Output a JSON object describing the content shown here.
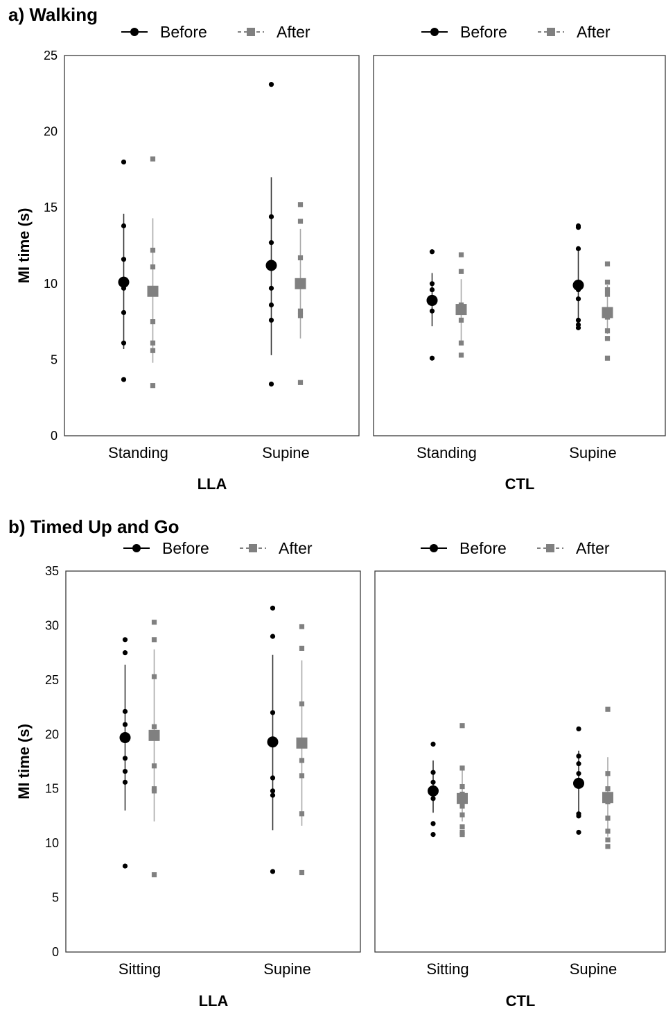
{
  "chart_data": [
    {
      "type": "scatter",
      "title": "a) Walking",
      "ylabel": "MI time (s)",
      "ylim": [
        0,
        25
      ],
      "yticks": [
        0,
        5,
        10,
        15,
        20,
        25
      ],
      "legend": [
        {
          "name": "Before",
          "color": "#000000",
          "marker": "circle",
          "line": "solid"
        },
        {
          "name": "After",
          "color": "#808080",
          "marker": "square",
          "line": "dashed"
        }
      ],
      "legend_placement": "top",
      "grid": false,
      "panels": [
        {
          "group": "LLA",
          "categories": [
            "Standing",
            "Supine"
          ],
          "series": [
            {
              "name": "Before",
              "mean": [
                10.1,
                11.2
              ],
              "sd_low": [
                5.7,
                5.3
              ],
              "sd_high": [
                14.6,
                17.0
              ],
              "points": [
                [
                  18.0,
                  13.8,
                  11.6,
                  10.2,
                  9.7,
                  8.1,
                  6.1,
                  3.7
                ],
                [
                  23.1,
                  14.4,
                  12.7,
                  9.7,
                  8.6,
                  7.6,
                  3.4
                ]
              ]
            },
            {
              "name": "After",
              "mean": [
                9.5,
                10.0
              ],
              "sd_low": [
                4.8,
                6.4
              ],
              "sd_high": [
                14.3,
                13.6
              ],
              "points": [
                [
                  18.2,
                  12.2,
                  11.1,
                  7.5,
                  6.1,
                  5.6,
                  3.3
                ],
                [
                  15.2,
                  14.1,
                  11.7,
                  10.1,
                  8.2,
                  7.9,
                  3.5
                ]
              ]
            }
          ]
        },
        {
          "group": "CTL",
          "categories": [
            "Standing",
            "Supine"
          ],
          "series": [
            {
              "name": "Before",
              "mean": [
                8.9,
                9.9
              ],
              "sd_low": [
                7.2,
                7.6
              ],
              "sd_high": [
                10.7,
                12.2
              ],
              "points": [
                [
                  12.1,
                  10.0,
                  9.6,
                  8.2,
                  5.1
                ],
                [
                  13.8,
                  13.7,
                  12.3,
                  9.6,
                  9.0,
                  7.6,
                  7.3,
                  7.1
                ]
              ]
            },
            {
              "name": "After",
              "mean": [
                8.3,
                8.1
              ],
              "sd_low": [
                6.2,
                6.7
              ],
              "sd_high": [
                10.3,
                9.9
              ],
              "points": [
                [
                  11.9,
                  10.8,
                  8.6,
                  7.6,
                  6.1,
                  5.3
                ],
                [
                  11.3,
                  10.1,
                  9.6,
                  9.3,
                  7.8,
                  6.9,
                  6.4,
                  5.1
                ]
              ]
            }
          ]
        }
      ]
    },
    {
      "type": "scatter",
      "title": "b) Timed Up and Go",
      "ylabel": "MI time (s)",
      "ylim": [
        0,
        35
      ],
      "yticks": [
        0,
        5,
        10,
        15,
        20,
        25,
        30,
        35
      ],
      "legend": [
        {
          "name": "Before",
          "color": "#000000",
          "marker": "circle",
          "line": "solid"
        },
        {
          "name": "After",
          "color": "#808080",
          "marker": "square",
          "line": "dashed"
        }
      ],
      "legend_placement": "top",
      "grid": false,
      "panels": [
        {
          "group": "LLA",
          "categories": [
            "Sitting",
            "Supine"
          ],
          "series": [
            {
              "name": "Before",
              "mean": [
                19.7,
                19.3
              ],
              "sd_low": [
                13.0,
                11.2
              ],
              "sd_high": [
                26.4,
                27.3
              ],
              "points": [
                [
                  28.7,
                  27.5,
                  22.1,
                  20.9,
                  19.8,
                  17.8,
                  16.6,
                  15.6,
                  7.9
                ],
                [
                  31.6,
                  29.0,
                  22.0,
                  19.3,
                  16.0,
                  14.8,
                  14.4,
                  7.4
                ]
              ]
            },
            {
              "name": "After",
              "mean": [
                19.9,
                19.2
              ],
              "sd_low": [
                12.0,
                11.6
              ],
              "sd_high": [
                27.8,
                26.8
              ],
              "points": [
                [
                  30.3,
                  28.7,
                  25.3,
                  20.7,
                  17.1,
                  15.0,
                  14.8,
                  7.1
                ],
                [
                  29.9,
                  27.9,
                  22.8,
                  17.6,
                  16.2,
                  12.7,
                  7.3
                ]
              ]
            }
          ]
        },
        {
          "group": "CTL",
          "categories": [
            "Sitting",
            "Supine"
          ],
          "series": [
            {
              "name": "Before",
              "mean": [
                14.8,
                15.5
              ],
              "sd_low": [
                12.8,
                12.6
              ],
              "sd_high": [
                17.6,
                18.5
              ],
              "points": [
                [
                  19.1,
                  16.5,
                  15.6,
                  14.1,
                  11.8,
                  10.8
                ],
                [
                  20.5,
                  18.0,
                  17.3,
                  16.4,
                  15.6,
                  12.7,
                  12.5,
                  11.0
                ]
              ]
            },
            {
              "name": "After",
              "mean": [
                14.1,
                14.2
              ],
              "sd_low": [
                12.0,
                10.6
              ],
              "sd_high": [
                16.8,
                17.9
              ],
              "points": [
                [
                  20.8,
                  16.9,
                  15.2,
                  14.5,
                  13.4,
                  12.6,
                  11.5,
                  11.0,
                  10.8
                ],
                [
                  22.3,
                  16.4,
                  15.0,
                  13.8,
                  12.3,
                  11.1,
                  10.3,
                  9.7
                ]
              ]
            }
          ]
        }
      ]
    }
  ]
}
